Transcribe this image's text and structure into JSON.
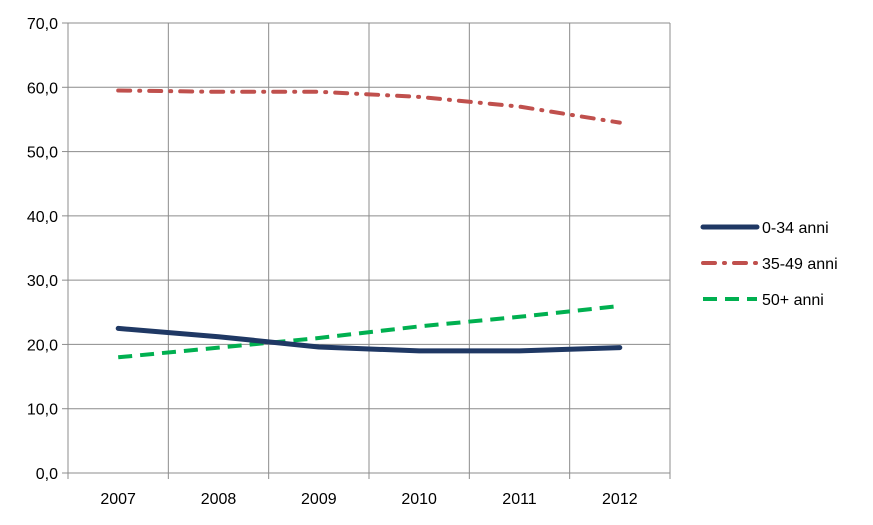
{
  "chart_data": {
    "type": "line",
    "title": "",
    "xlabel": "",
    "ylabel": "",
    "categories": [
      "2007",
      "2008",
      "2009",
      "2010",
      "2011",
      "2012"
    ],
    "ylim": [
      0,
      70
    ],
    "ytick_labels": [
      "0,0",
      "10,0",
      "20,0",
      "30,0",
      "40,0",
      "50,0",
      "60,0",
      "70,0"
    ],
    "grid": "on",
    "legend_position": "right",
    "series": [
      {
        "name": "0-34 anni",
        "values": [
          22.5,
          21.2,
          19.6,
          19.0,
          19.0,
          19.5
        ],
        "color": "#1f3864",
        "style": "solid"
      },
      {
        "name": "35-49 anni",
        "values": [
          59.5,
          59.3,
          59.3,
          58.5,
          57.0,
          54.5
        ],
        "color": "#c0504d",
        "style": "dash-dot"
      },
      {
        "name": "50+ anni",
        "values": [
          18.0,
          19.5,
          21.0,
          22.8,
          24.3,
          26.0
        ],
        "color": "#00b050",
        "style": "dashed"
      }
    ]
  }
}
